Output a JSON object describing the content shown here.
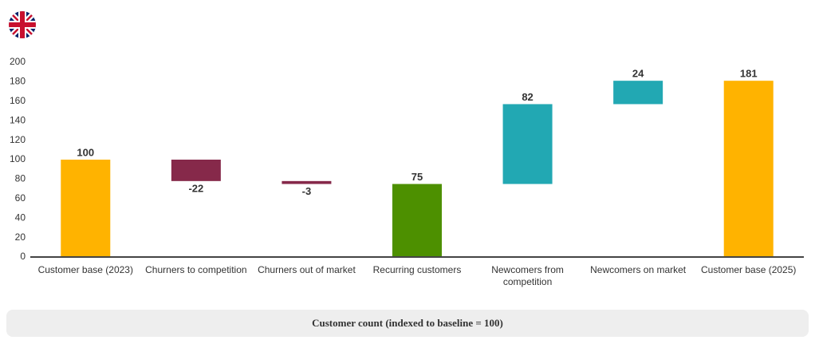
{
  "chart_data": {
    "type": "waterfall",
    "xlabel": "Customer count (indexed to baseline = 100)",
    "categories": [
      "Customer base (2023)",
      "Churners to competition",
      "Churners out of market",
      "Recurring customers",
      "Newcomers from competition",
      "Newcomers on market",
      "Customer base (2025)"
    ],
    "values": [
      100,
      -22,
      -3,
      75,
      82,
      24,
      181
    ],
    "is_total": [
      true,
      false,
      false,
      true,
      false,
      false,
      true
    ],
    "colors": [
      "#FFB300",
      "#86294A",
      "#86294A",
      "#4D9000",
      "#22A8B3",
      "#22A8B3",
      "#FFB300"
    ],
    "ylim": [
      0,
      200
    ],
    "yticks": [
      0,
      20,
      40,
      60,
      80,
      100,
      120,
      140,
      160,
      180,
      200
    ],
    "grid": false
  }
}
